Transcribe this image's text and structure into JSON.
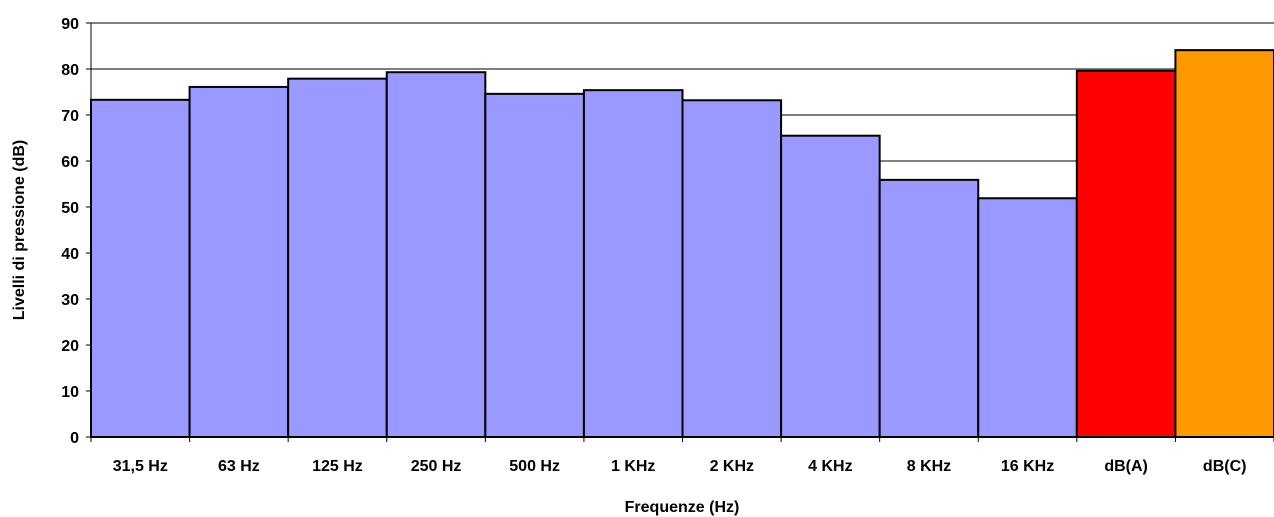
{
  "chart_data": {
    "type": "bar",
    "title": "",
    "xlabel": "Frequenze (Hz)",
    "ylabel": "Livelli di pressione (dB)",
    "ylim": [
      0,
      90
    ],
    "y_ticks": [
      0,
      10,
      20,
      30,
      40,
      50,
      60,
      70,
      80,
      90
    ],
    "categories": [
      "31,5 Hz",
      "63 Hz",
      "125 Hz",
      "250 Hz",
      "500 Hz",
      "1 KHz",
      "2 KHz",
      "4 KHz",
      "8 KHz",
      "16 KHz",
      "dB(A)",
      "dB(C)"
    ],
    "values": [
      73.3,
      76.1,
      77.9,
      79.3,
      74.6,
      75.4,
      73.2,
      65.5,
      55.9,
      51.9,
      79.6,
      84.1
    ],
    "bar_colors": [
      "#9999ff",
      "#9999ff",
      "#9999ff",
      "#9999ff",
      "#9999ff",
      "#9999ff",
      "#9999ff",
      "#9999ff",
      "#9999ff",
      "#9999ff",
      "#ff0000",
      "#ff9900"
    ],
    "grid": true,
    "gridline_color": "#000000",
    "legend": "none"
  }
}
